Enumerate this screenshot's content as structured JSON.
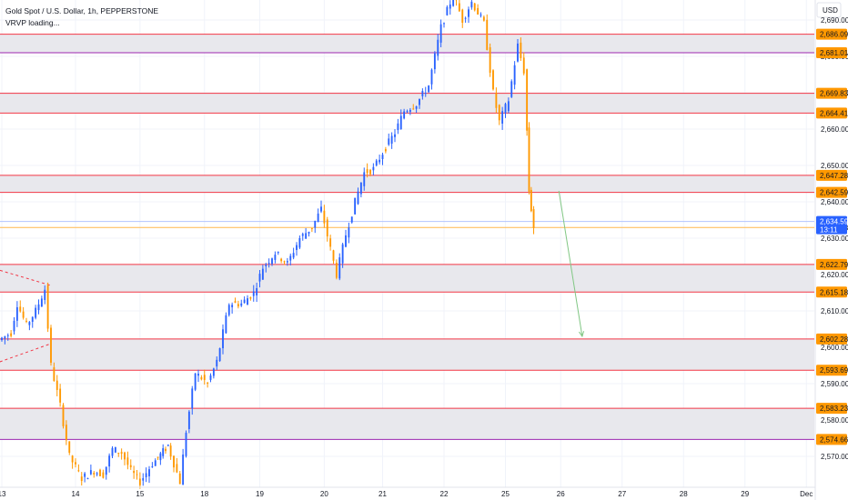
{
  "legend": {
    "symbol_line": "Gold Spot / U.S. Dollar, 1h, PEPPERSTONE",
    "indicator_line": "VRVP loading..."
  },
  "currency": "USD",
  "chart_data": {
    "type": "candlestick",
    "title": "Gold Spot / U.S. Dollar, 1h, PEPPERSTONE",
    "ylim": [
      2561.5,
      2695.5
    ],
    "y_ticks": [
      2570,
      2580,
      2590,
      2600,
      2610,
      2620,
      2630,
      2640,
      2650,
      2660,
      2670,
      2680,
      2690
    ],
    "x_labels": [
      "13",
      "14",
      "15",
      "18",
      "19",
      "20",
      "21",
      "22",
      "25",
      "26",
      "27",
      "28",
      "29",
      "Dec"
    ],
    "x_label_session_index": [
      0,
      1.2,
      2.25,
      3.3,
      4.2,
      5.25,
      6.2,
      7.2,
      8.2,
      9.1,
      10.1,
      11.1,
      12.1,
      13.1
    ],
    "session_count": 13.3,
    "last_price": 2634.59,
    "countdown": "13:11",
    "bid_price": 2632.93,
    "grid": true,
    "colors": {
      "up": "#2962ff",
      "down": "#ff9800",
      "zone_border": "#f23645",
      "zone_fill": "#e8e8ed",
      "purple": "#9c27b0",
      "arrow": "#81c784",
      "last_price": "#2962ff",
      "level_badge": "#ff9800"
    },
    "zones": [
      {
        "top": 2686.09,
        "bottom": 2681.01
      },
      {
        "top": 2669.83,
        "bottom": 2664.41
      },
      {
        "top": 2647.28,
        "bottom": 2642.59
      },
      {
        "top": 2622.79,
        "bottom": 2615.18
      },
      {
        "top": 2602.28,
        "bottom": 2593.69
      },
      {
        "top": 2583.23,
        "bottom": 2574.66
      }
    ],
    "level_labels": [
      "2,686.09",
      "2,681.01",
      "2,669.83",
      "2,664.41",
      "2,647.28",
      "2,642.59",
      "2,632.93",
      "2,622.79",
      "2,615.18",
      "2,602.28",
      "2,593.69",
      "2,583.23",
      "2,574.66"
    ],
    "level_values": [
      2686.09,
      2681.01,
      2669.83,
      2664.41,
      2647.28,
      2642.59,
      2632.93,
      2622.79,
      2615.18,
      2602.28,
      2593.69,
      2583.23,
      2574.66
    ],
    "tick_labels": [
      "2,570.00",
      "2,580.00",
      "2,590.00",
      "2,600.00",
      "2,610.00",
      "2,620.00",
      "2,630.00",
      "2,640.00",
      "2,650.00",
      "2,660.00",
      "2,670.00",
      "2,680.00",
      "2,690.00"
    ],
    "last_price_label": "2,634.59",
    "projection": {
      "from": [
        9.07,
        2643.0
      ],
      "to": [
        9.45,
        2603.0
      ]
    },
    "trendlines": [
      {
        "from": [
          -0.2,
          2622.0
        ],
        "to": [
          0.8,
          2617.0
        ]
      },
      {
        "from": [
          -0.2,
          2595.0
        ],
        "to": [
          0.8,
          2601.0
        ]
      }
    ],
    "anchors": [
      [
        0.0,
        2602
      ],
      [
        0.2,
        2604
      ],
      [
        0.3,
        2612
      ],
      [
        0.45,
        2606
      ],
      [
        0.6,
        2610
      ],
      [
        0.75,
        2616
      ],
      [
        0.85,
        2595
      ],
      [
        1.0,
        2584
      ],
      [
        1.15,
        2570
      ],
      [
        1.35,
        2564
      ],
      [
        1.55,
        2566
      ],
      [
        1.7,
        2565
      ],
      [
        1.85,
        2572
      ],
      [
        2.0,
        2571
      ],
      [
        2.15,
        2566
      ],
      [
        2.3,
        2563
      ],
      [
        2.5,
        2568
      ],
      [
        2.75,
        2573
      ],
      [
        2.95,
        2563
      ],
      [
        3.05,
        2577
      ],
      [
        3.2,
        2593
      ],
      [
        3.4,
        2590
      ],
      [
        3.55,
        2596
      ],
      [
        3.75,
        2612
      ],
      [
        3.95,
        2612
      ],
      [
        4.15,
        2615
      ],
      [
        4.3,
        2622
      ],
      [
        4.5,
        2626
      ],
      [
        4.7,
        2623
      ],
      [
        4.9,
        2630
      ],
      [
        5.1,
        2633
      ],
      [
        5.25,
        2638
      ],
      [
        5.4,
        2627
      ],
      [
        5.5,
        2620
      ],
      [
        5.65,
        2631
      ],
      [
        5.8,
        2640
      ],
      [
        5.95,
        2648
      ],
      [
        6.1,
        2649
      ],
      [
        6.3,
        2655
      ],
      [
        6.45,
        2659
      ],
      [
        6.6,
        2665
      ],
      [
        6.8,
        2667
      ],
      [
        7.0,
        2672
      ],
      [
        7.2,
        2688
      ],
      [
        7.4,
        2697
      ],
      [
        7.55,
        2690
      ],
      [
        7.7,
        2695
      ],
      [
        7.9,
        2689
      ],
      [
        8.05,
        2670
      ],
      [
        8.15,
        2662
      ],
      [
        8.3,
        2668
      ],
      [
        8.45,
        2683
      ],
      [
        8.55,
        2676
      ],
      [
        8.62,
        2643
      ],
      [
        8.7,
        2633
      ]
    ]
  }
}
